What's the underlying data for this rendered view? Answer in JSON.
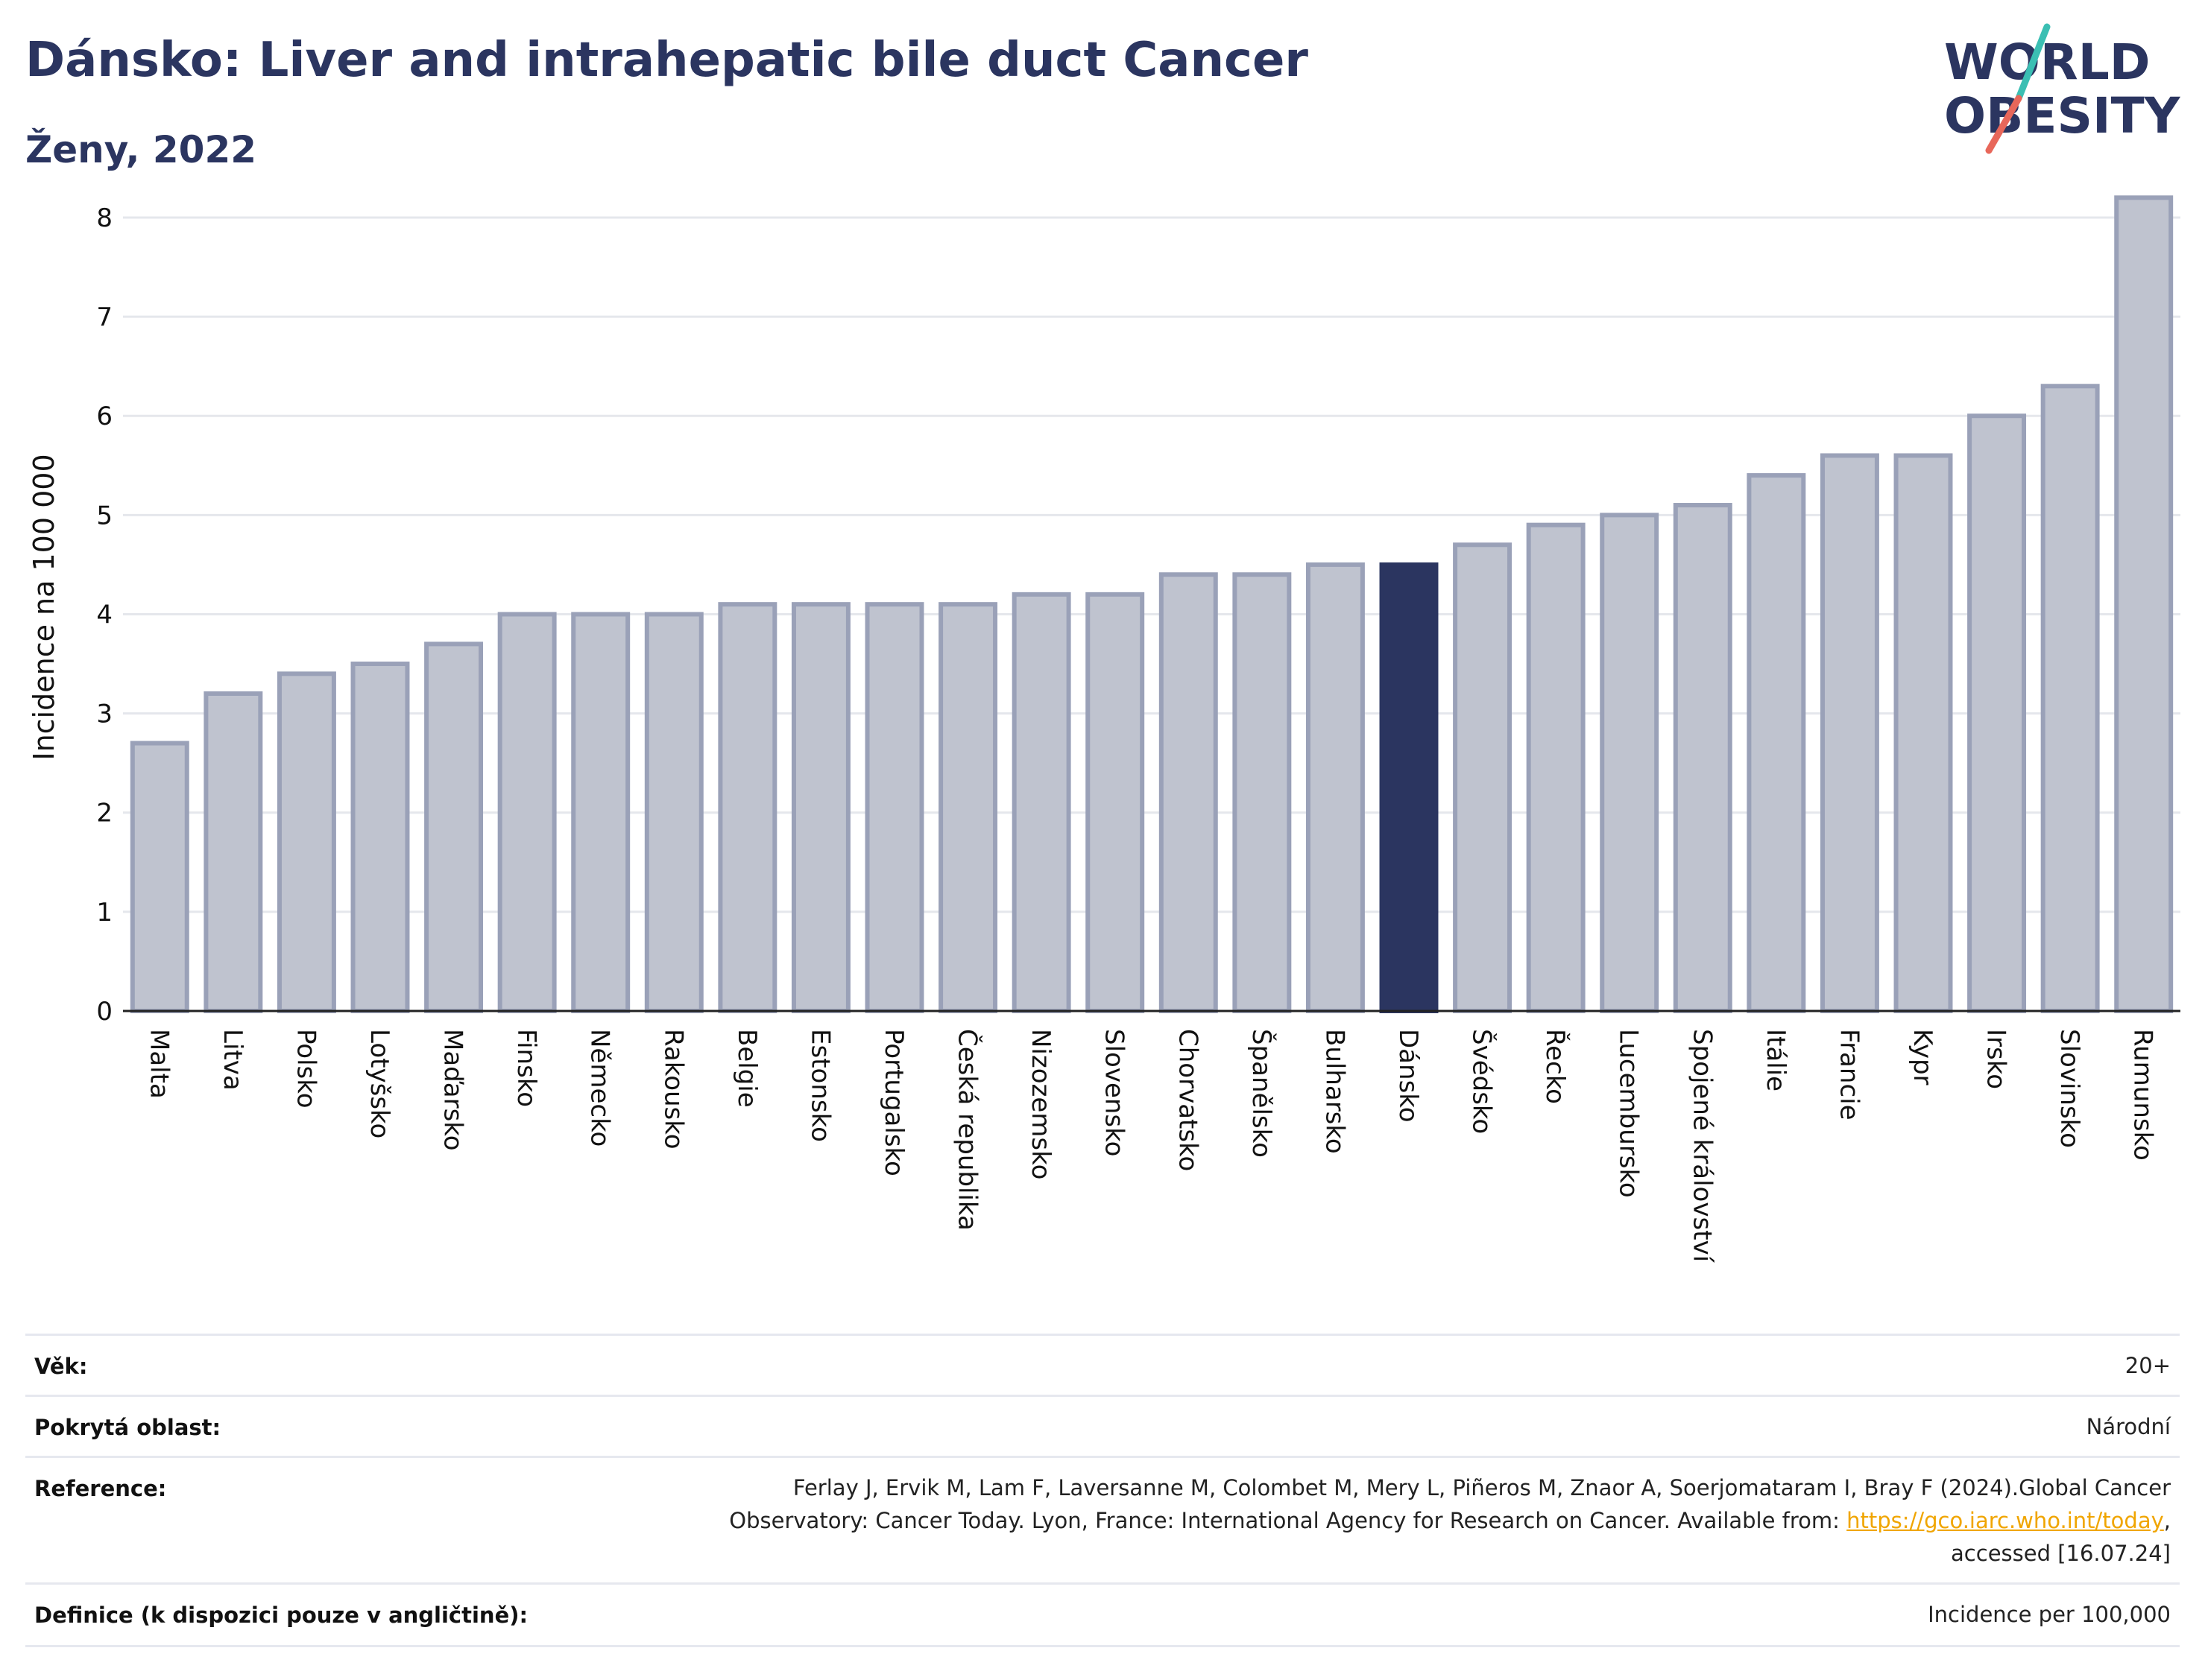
{
  "header": {
    "title": "Dánsko: Liver and intrahepatic bile duct Cancer",
    "subtitle": "Ženy, 2022"
  },
  "logo": {
    "line1": "WORLD",
    "line2": "OBESITY",
    "colors": {
      "text": "#2b3560",
      "slash_top": "#3bbfb3",
      "slash_bottom": "#e8675a"
    }
  },
  "chart_data": {
    "type": "bar",
    "ylabel": "Incidence na 100 000",
    "ylim": [
      0,
      8.3
    ],
    "yticks": [
      0,
      1,
      2,
      3,
      4,
      5,
      6,
      7,
      8
    ],
    "grid": true,
    "highlight": "Dánsko",
    "colors": {
      "bar": "#bfc3cf",
      "bar_edge": "#9aa1b8",
      "highlight": "#2b3560",
      "grid": "#e5e7ec",
      "axis": "#222222"
    },
    "categories": [
      "Malta",
      "Litva",
      "Polsko",
      "Lotyšsko",
      "Maďarsko",
      "Finsko",
      "Německo",
      "Rakousko",
      "Belgie",
      "Estonsko",
      "Portugalsko",
      "Česká republika",
      "Nizozemsko",
      "Slovensko",
      "Chorvatsko",
      "Španělsko",
      "Bulharsko",
      "Dánsko",
      "Švédsko",
      "Řecko",
      "Lucembursko",
      "Spojené království",
      "Itálie",
      "Francie",
      "Kypr",
      "Irsko",
      "Slovinsko",
      "Rumunsko"
    ],
    "values": [
      2.7,
      3.2,
      3.4,
      3.5,
      3.7,
      4.0,
      4.0,
      4.0,
      4.1,
      4.1,
      4.1,
      4.1,
      4.2,
      4.2,
      4.4,
      4.4,
      4.5,
      4.5,
      4.7,
      4.9,
      5.0,
      5.1,
      5.4,
      5.6,
      5.6,
      6.0,
      6.3,
      8.2
    ]
  },
  "meta": {
    "age_label": "Věk:",
    "age_value": "20+",
    "coverage_label": "Pokrytá oblast:",
    "coverage_value": "Národní",
    "reference_label": "Reference:",
    "reference_line1": "Ferlay J, Ervik M, Lam F, Laversanne M, Colombet M, Mery L, Piñeros M, Znaor A, Soerjomataram I, Bray F (2024).Global Cancer",
    "reference_line2_pre": "Observatory: Cancer Today. Lyon, France: International Agency for Research on Cancer. Available from: ",
    "reference_link": "https://gco.iarc.who.int/today",
    "reference_line2_post": ",",
    "reference_line3": "accessed [16.07.24]",
    "definition_label": "Definice (k dispozici pouze v angličtině):",
    "definition_value": "Incidence per 100,000"
  }
}
